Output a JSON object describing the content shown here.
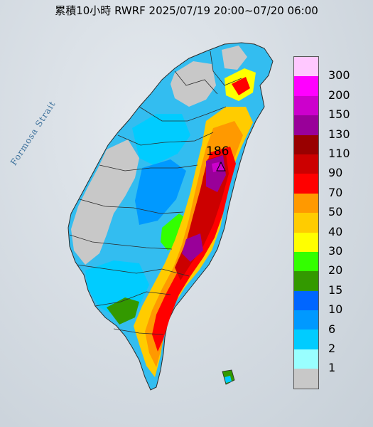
{
  "title": "累積10小時 RWRF 2025/07/19 20:00~07/20 06:00",
  "water_label": "Formosa Strait",
  "max_value": "186",
  "max_marker": "triangle-marker",
  "legend": {
    "colors": [
      "#ffc8ff",
      "#ff00ff",
      "#cc00cc",
      "#990099",
      "#990000",
      "#cc0000",
      "#ff0000",
      "#ff9900",
      "#ffcc00",
      "#ffff00",
      "#33ff00",
      "#339900",
      "#0066ff",
      "#0099ff",
      "#00ccff",
      "#99ffff",
      "#c8c8c8"
    ],
    "labels": [
      "300",
      "200",
      "150",
      "130",
      "110",
      "90",
      "70",
      "50",
      "40",
      "30",
      "20",
      "15",
      "10",
      "6",
      "2",
      "1"
    ]
  }
}
